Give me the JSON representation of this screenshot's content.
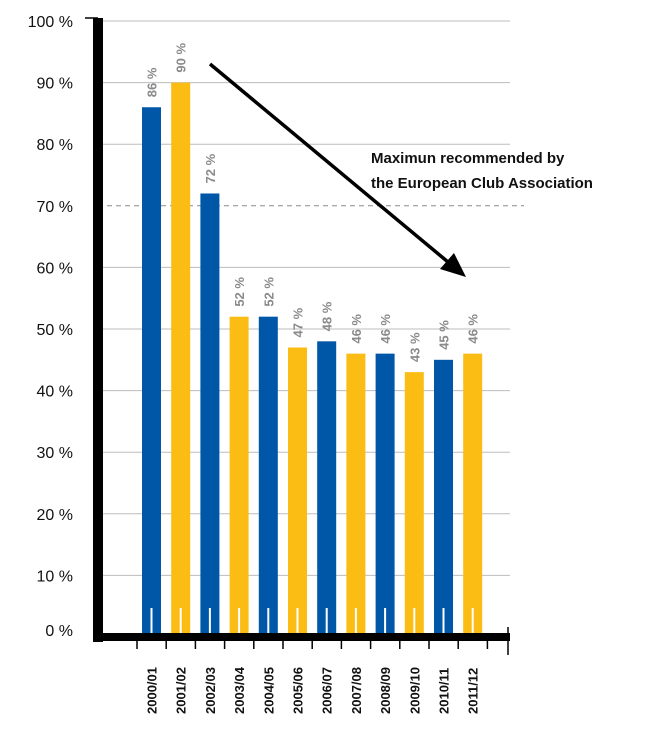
{
  "chart_data": {
    "type": "bar",
    "title": "",
    "xlabel": "",
    "ylabel": "",
    "categories": [
      "2000/01",
      "2001/02",
      "2002/03",
      "2003/04",
      "2004/05",
      "2005/06",
      "2006/07",
      "2007/08",
      "2008/09",
      "2009/10",
      "2010/11",
      "2011/12"
    ],
    "values": [
      86,
      90,
      72,
      52,
      52,
      47,
      48,
      46,
      46,
      43,
      45,
      46
    ],
    "data_labels": [
      "86 %",
      "90 %",
      "72 %",
      "52 %",
      "52 %",
      "47 %",
      "48 %",
      "46 %",
      "46 %",
      "43 %",
      "45 %",
      "46 %"
    ],
    "bar_colors": [
      "#0057a8",
      "#fbbc13",
      "#0057a8",
      "#fbbc13",
      "#0057a8",
      "#fbbc13",
      "#0057a8",
      "#fbbc13",
      "#0057a8",
      "#fbbc13",
      "#0057a8",
      "#fbbc13"
    ],
    "ylim": [
      0,
      100
    ],
    "yticks": [
      0,
      10,
      20,
      30,
      40,
      50,
      60,
      70,
      80,
      90,
      100
    ],
    "ytick_labels": [
      "0 %",
      "10 %",
      "20 %",
      "30 %",
      "40 %",
      "50 %",
      "60 %",
      "70 %",
      "80 %",
      "90 %",
      "100 %"
    ],
    "grid": true,
    "reference_line": {
      "value": 70,
      "style": "dashed"
    },
    "annotation": {
      "lines": [
        "Maximun recommended by",
        "the European Club Association"
      ],
      "arrow": true
    }
  },
  "colors": {
    "blue": "#0057a8",
    "yellow": "#fbbc13",
    "axis": "#000000",
    "grid": "#bdbdbd",
    "reference_line": "#8a8a8a",
    "data_label": "#8a8a8a"
  }
}
